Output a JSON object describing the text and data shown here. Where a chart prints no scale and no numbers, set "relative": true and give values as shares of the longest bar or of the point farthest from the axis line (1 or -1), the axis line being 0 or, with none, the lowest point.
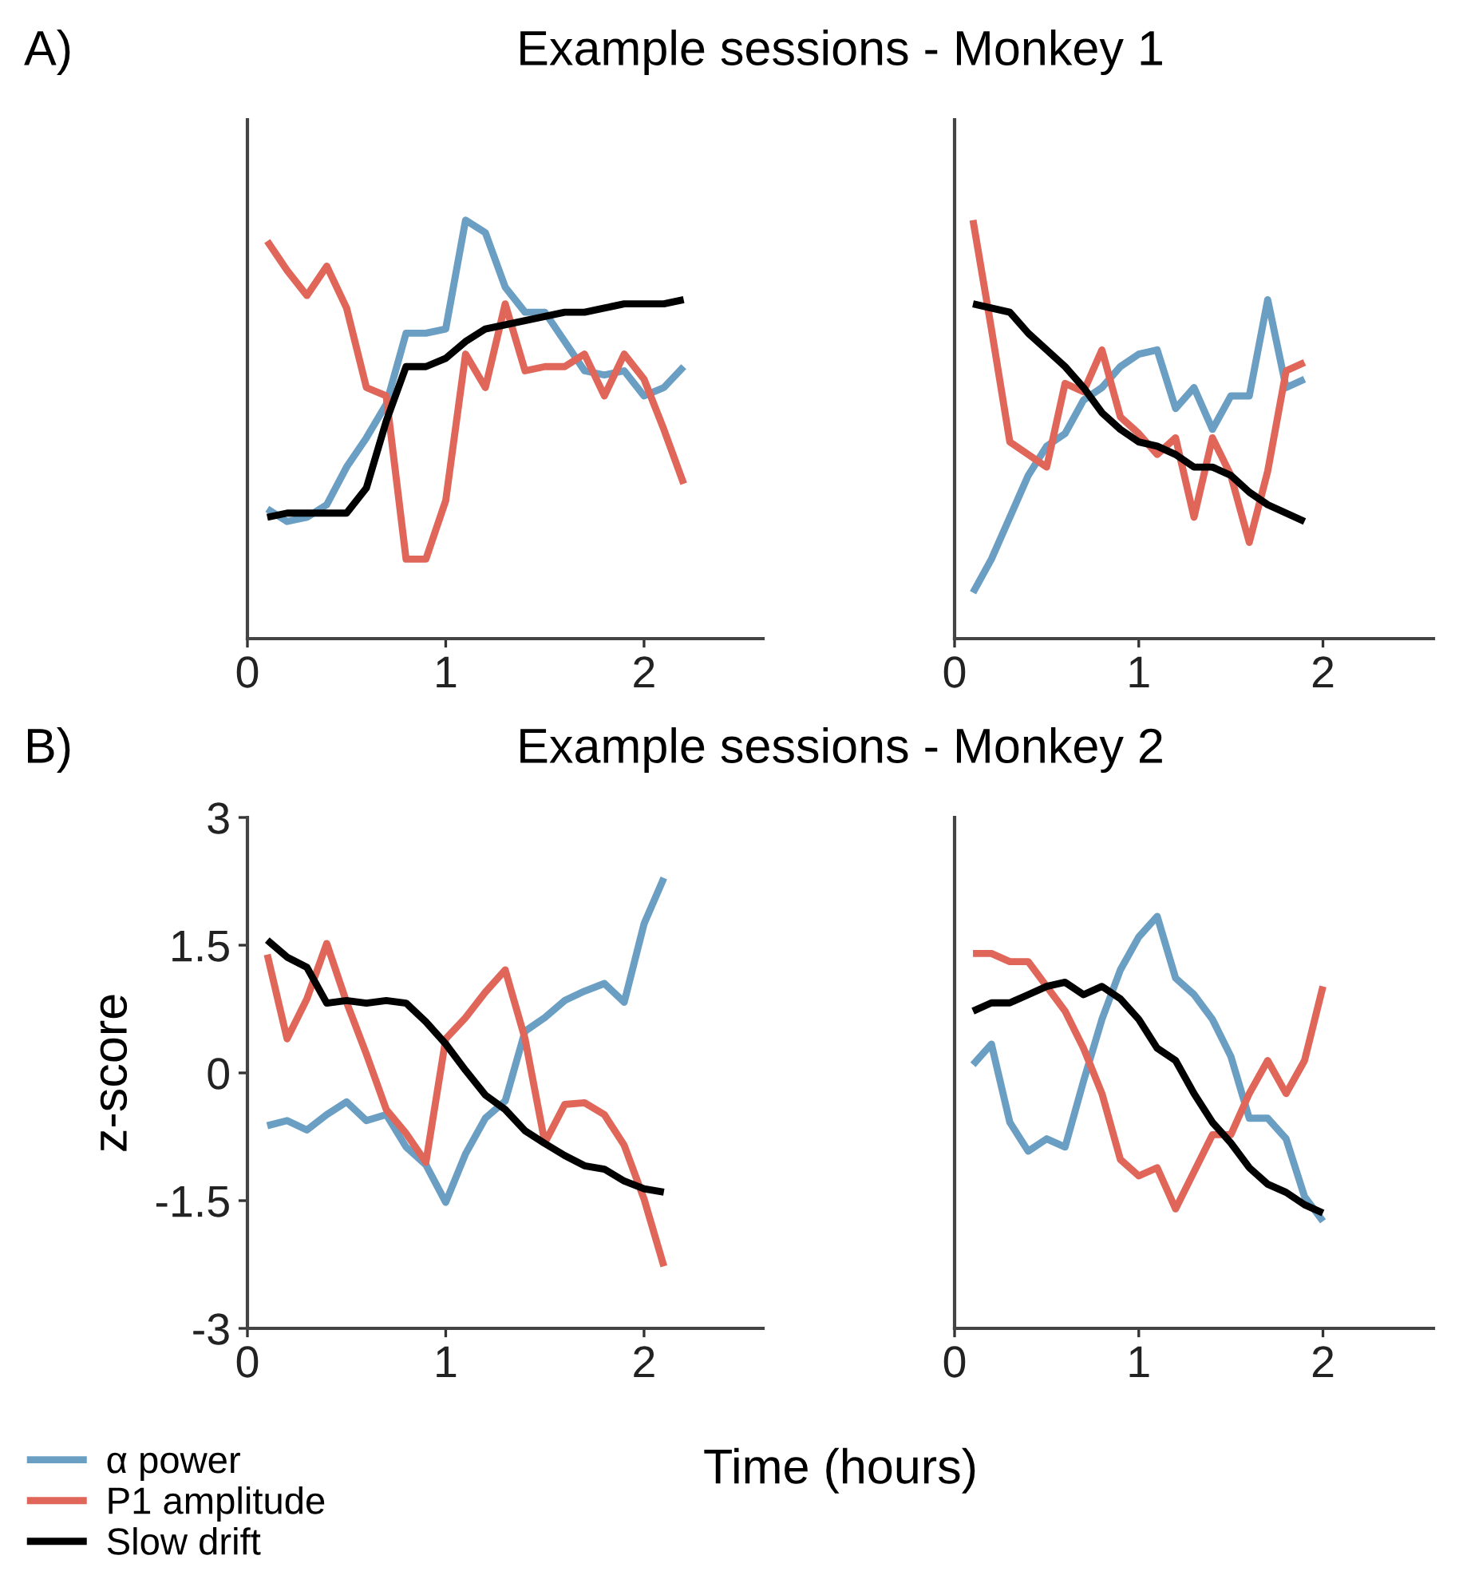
{
  "chart_data": [
    {
      "type": "line",
      "title": "Example sessions - Monkey 1",
      "annotations": [
        "A)"
      ],
      "relative": true,
      "xlim": [
        0,
        2.6
      ],
      "xticks": [
        0,
        1,
        2
      ],
      "tick_labels": "x",
      "grid": false,
      "legend": false,
      "x": [
        0.1,
        0.2,
        0.3,
        0.4,
        0.5,
        0.6,
        0.7,
        0.8,
        0.9,
        1.0,
        1.1,
        1.2,
        1.3,
        1.4,
        1.5,
        1.6,
        1.7,
        1.8,
        1.9,
        2.0,
        2.1,
        2.2
      ],
      "series": [
        {
          "color": "#6a9ec2",
          "values": [
            0.31,
            0.28,
            0.29,
            0.32,
            0.41,
            0.48,
            0.56,
            0.73,
            0.73,
            0.74,
            1,
            0.97,
            0.84,
            0.78,
            0.78,
            0.71,
            0.64,
            0.63,
            0.64,
            0.58,
            0.6,
            0.65
          ]
        },
        {
          "color": "#e0665a",
          "values": [
            0.95,
            0.88,
            0.82,
            0.89,
            0.79,
            0.6,
            0.58,
            0.19,
            0.19,
            0.33,
            0.68,
            0.6,
            0.8,
            0.64,
            0.65,
            0.65,
            0.68,
            0.58,
            0.68,
            0.62,
            0.5,
            0.37
          ]
        },
        {
          "color": "#000000",
          "values": [
            0.29,
            0.3,
            0.3,
            0.3,
            0.3,
            0.36,
            0.52,
            0.65,
            0.65,
            0.67,
            0.71,
            0.74,
            0.75,
            0.76,
            0.77,
            0.78,
            0.78,
            0.79,
            0.8,
            0.8,
            0.8,
            0.81
          ]
        }
      ]
    },
    {
      "type": "line",
      "relative": true,
      "xlim": [
        0,
        2.6
      ],
      "xticks": [
        0,
        1,
        2
      ],
      "tick_labels": "x",
      "grid": false,
      "legend": false,
      "x": [
        0.1,
        0.2,
        0.3,
        0.4,
        0.5,
        0.6,
        0.7,
        0.8,
        0.9,
        1.0,
        1.1,
        1.2,
        1.3,
        1.4,
        1.5,
        1.6,
        1.7,
        1.8,
        1.9
      ],
      "series": [
        {
          "color": "#6a9ec2",
          "values": [
            0.11,
            0.19,
            0.29,
            0.39,
            0.46,
            0.49,
            0.57,
            0.6,
            0.65,
            0.68,
            0.69,
            0.55,
            0.6,
            0.5,
            0.58,
            0.58,
            0.81,
            0.6,
            0.62
          ]
        },
        {
          "color": "#e0665a",
          "values": [
            1,
            0.74,
            0.47,
            0.44,
            0.41,
            0.61,
            0.59,
            0.69,
            0.53,
            0.49,
            0.44,
            0.48,
            0.29,
            0.48,
            0.39,
            0.23,
            0.4,
            0.64,
            0.66
          ]
        },
        {
          "color": "#000000",
          "values": [
            0.8,
            0.79,
            0.78,
            0.73,
            0.69,
            0.65,
            0.6,
            0.54,
            0.5,
            0.47,
            0.46,
            0.44,
            0.41,
            0.41,
            0.39,
            0.35,
            0.32,
            0.3,
            0.28
          ]
        }
      ]
    },
    {
      "type": "line",
      "title": "Example sessions - Monkey 2",
      "annotations": [
        "B)"
      ],
      "xlabel": "Time (hours)",
      "ylabel": "z-score",
      "xlim": [
        0,
        2.6
      ],
      "xticks": [
        0,
        1,
        2
      ],
      "ylim": [
        -3,
        3
      ],
      "yticks": [
        {
          "value": -3,
          "label": "-3"
        },
        {
          "value": -1.5,
          "label": "-1.5"
        },
        0,
        1.5,
        3
      ],
      "grid": false,
      "legend": "bottom left",
      "x": [
        0.1,
        0.2,
        0.3,
        0.4,
        0.5,
        0.6,
        0.7,
        0.8,
        0.9,
        1.0,
        1.1,
        1.2,
        1.3,
        1.4,
        1.5,
        1.6,
        1.7,
        1.8,
        1.9,
        2.0,
        2.1
      ],
      "series": [
        {
          "name": "α power",
          "color": "#6a9ec2",
          "values": [
            -0.62,
            -0.56,
            -0.67,
            -0.49,
            -0.34,
            -0.56,
            -0.49,
            -0.87,
            -1.08,
            -1.52,
            -0.95,
            -0.53,
            -0.33,
            0.49,
            0.65,
            0.85,
            0.96,
            1.05,
            0.83,
            1.75,
            2.29
          ]
        },
        {
          "name": "P1 amplitude",
          "color": "#e0665a",
          "values": [
            1.39,
            0.4,
            0.87,
            1.52,
            0.83,
            0.22,
            -0.43,
            -0.71,
            -1.05,
            0.4,
            0.65,
            0.95,
            1.21,
            0.4,
            -0.82,
            -0.37,
            -0.35,
            -0.49,
            -0.85,
            -1.48,
            -2.27
          ]
        },
        {
          "name": "Slow drift",
          "color": "#000000",
          "values": [
            1.56,
            1.36,
            1.24,
            0.82,
            0.85,
            0.82,
            0.85,
            0.82,
            0.6,
            0.34,
            0.03,
            -0.26,
            -0.43,
            -0.68,
            -0.83,
            -0.97,
            -1.09,
            -1.13,
            -1.27,
            -1.36,
            -1.4
          ]
        }
      ]
    },
    {
      "type": "line",
      "relative": true,
      "xlim": [
        0,
        2.6
      ],
      "xticks": [
        0,
        1,
        2
      ],
      "tick_labels": "x",
      "grid": false,
      "legend": false,
      "x": [
        0.1,
        0.2,
        0.3,
        0.4,
        0.5,
        0.6,
        0.7,
        0.8,
        0.9,
        1.0,
        1.1,
        1.2,
        1.3,
        1.4,
        1.5,
        1.6,
        1.7,
        1.8,
        1.9,
        2.0
      ],
      "series": [
        {
          "color": "#6a9ec2",
          "values": [
            0.64,
            0.69,
            0.5,
            0.43,
            0.46,
            0.44,
            0.6,
            0.75,
            0.87,
            0.95,
            1,
            0.85,
            0.81,
            0.75,
            0.66,
            0.51,
            0.51,
            0.46,
            0.32,
            0.26
          ]
        },
        {
          "color": "#e0665a",
          "values": [
            0.91,
            0.91,
            0.89,
            0.89,
            0.83,
            0.77,
            0.68,
            0.57,
            0.41,
            0.37,
            0.39,
            0.29,
            0.38,
            0.47,
            0.47,
            0.57,
            0.65,
            0.57,
            0.65,
            0.83
          ]
        },
        {
          "color": "#000000",
          "values": [
            0.77,
            0.79,
            0.79,
            0.81,
            0.83,
            0.84,
            0.81,
            0.83,
            0.8,
            0.75,
            0.68,
            0.65,
            0.57,
            0.5,
            0.45,
            0.39,
            0.35,
            0.33,
            0.3,
            0.28
          ]
        }
      ]
    }
  ]
}
